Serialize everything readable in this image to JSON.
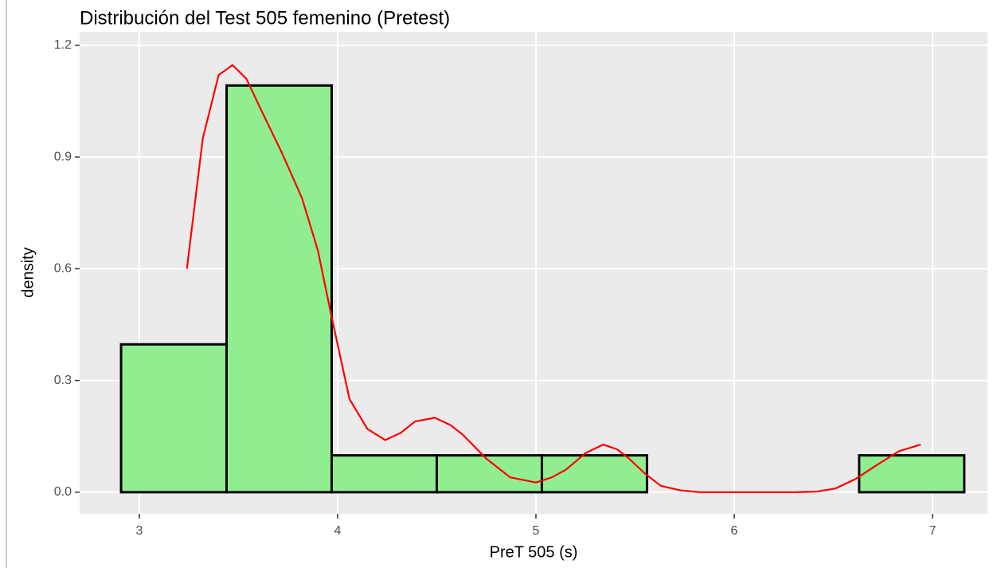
{
  "chart_data": {
    "type": "histogram",
    "title": "Distribución del Test 505 femenino (Pretest)",
    "xlabel": "PreT 505 (s)",
    "ylabel": "density",
    "bins": [
      2.908,
      3.44,
      3.97,
      4.5,
      5.03,
      5.56,
      6.1,
      6.63,
      7.16
    ],
    "values": [
      0.397,
      1.092,
      0.099,
      0.099,
      0.099,
      0,
      0,
      0.099
    ],
    "color": "#90ee90",
    "edgecolor": "#000000",
    "density": {
      "color": "#ff0000",
      "x": [
        3.24,
        3.32,
        3.4,
        3.47,
        3.54,
        3.62,
        3.72,
        3.82,
        3.9,
        3.97,
        4.06,
        4.15,
        4.24,
        4.32,
        4.39,
        4.49,
        4.57,
        4.63,
        4.75,
        4.87,
        5.0,
        5.08,
        5.15,
        5.25,
        5.34,
        5.41,
        5.47,
        5.55,
        5.63,
        5.73,
        5.83,
        6.0,
        6.15,
        6.31,
        6.42,
        6.51,
        6.61,
        6.71,
        6.83,
        6.94
      ],
      "y": [
        0.6,
        0.95,
        1.12,
        1.147,
        1.11,
        1.02,
        0.91,
        0.79,
        0.65,
        0.47,
        0.25,
        0.17,
        0.14,
        0.16,
        0.19,
        0.2,
        0.18,
        0.155,
        0.09,
        0.04,
        0.026,
        0.04,
        0.06,
        0.105,
        0.128,
        0.115,
        0.09,
        0.05,
        0.017,
        0.005,
        0.0,
        0.0,
        0.0,
        0.0,
        0.002,
        0.01,
        0.035,
        0.07,
        0.11,
        0.128
      ]
    },
    "xlim": [
      2.699,
      7.277
    ],
    "ylim": [
      -0.058,
      1.236
    ],
    "xticks": [
      3,
      4,
      5,
      6,
      7
    ],
    "yticks": [
      {
        "value": 0,
        "label": "0.0"
      },
      0.3,
      0.6,
      0.9,
      1.2
    ],
    "grid": true
  }
}
